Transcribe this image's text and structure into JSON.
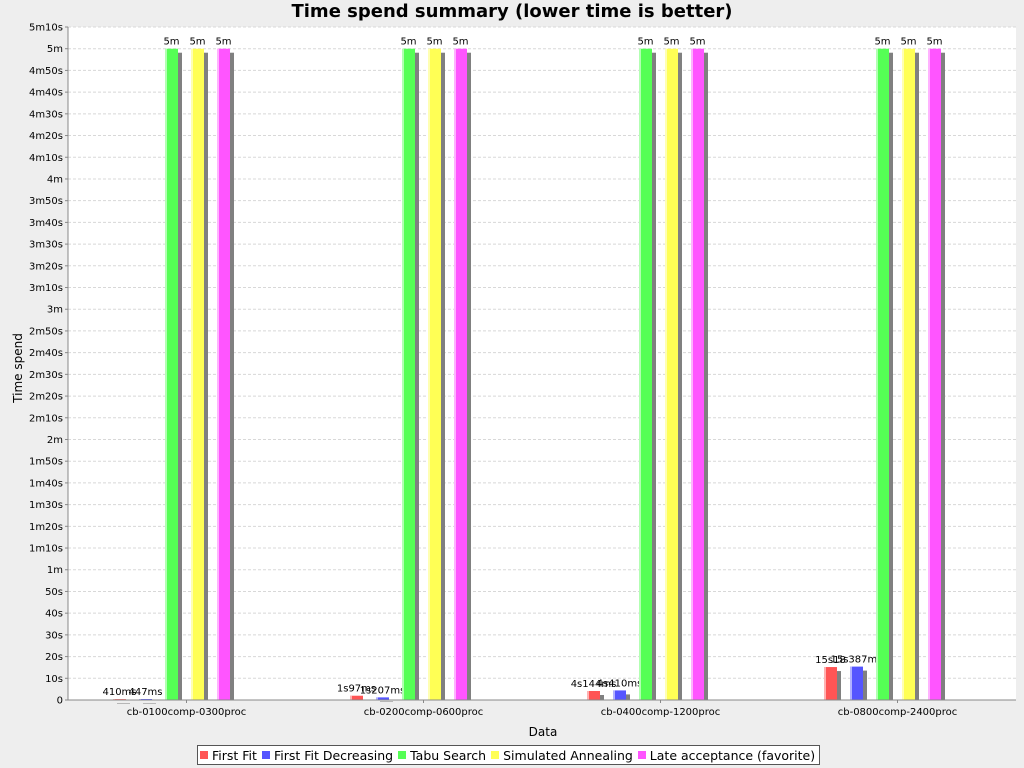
{
  "chart_data": {
    "type": "bar",
    "title": "Time spend summary (lower time is better)",
    "xlabel": "Data",
    "ylabel": "Time spend",
    "y_unit": "seconds",
    "ylim": [
      0,
      310
    ],
    "y_tick_step": 10,
    "y_ticks": [
      "0",
      "10s",
      "20s",
      "30s",
      "40s",
      "50s",
      "1m",
      "1m10s",
      "1m20s",
      "1m30s",
      "1m40s",
      "1m50s",
      "2m",
      "2m10s",
      "2m20s",
      "2m30s",
      "2m40s",
      "2m50s",
      "3m",
      "3m10s",
      "3m20s",
      "3m30s",
      "3m40s",
      "3m50s",
      "4m",
      "4m10s",
      "4m20s",
      "4m30s",
      "4m40s",
      "4m50s",
      "5m",
      "5m10s"
    ],
    "grid": true,
    "legend_position": "bottom",
    "categories": [
      "cb-0100comp-0300proc",
      "cb-0200comp-0600proc",
      "cb-0400comp-1200proc",
      "cb-0800comp-2400proc"
    ],
    "series": [
      {
        "name": "First Fit",
        "color": "#ff5555",
        "values": [
          0.41,
          1.97,
          4.144,
          15.18
        ],
        "labels": [
          "410ms",
          "1s97ms",
          "4s144ms",
          "15s18"
        ]
      },
      {
        "name": "First Fit Decreasing",
        "color": "#5555ff",
        "values": [
          0.447,
          1.207,
          4.41,
          15.387
        ],
        "labels": [
          "447ms",
          "1s207ms",
          "4s410ms",
          "15s387ms"
        ]
      },
      {
        "name": "Tabu Search",
        "color": "#55ff55",
        "values": [
          300,
          300,
          300,
          300
        ],
        "labels": [
          "5m",
          "5m",
          "5m",
          "5m"
        ]
      },
      {
        "name": "Simulated Annealing",
        "color": "#ffff55",
        "values": [
          300,
          300,
          300,
          300
        ],
        "labels": [
          "5m",
          "5m",
          "5m",
          "5m"
        ]
      },
      {
        "name": "Late acceptance (favorite)",
        "color": "#ff55ff",
        "values": [
          300,
          300,
          300,
          300
        ],
        "labels": [
          "5m",
          "5m",
          "5m",
          "5m"
        ]
      }
    ]
  }
}
